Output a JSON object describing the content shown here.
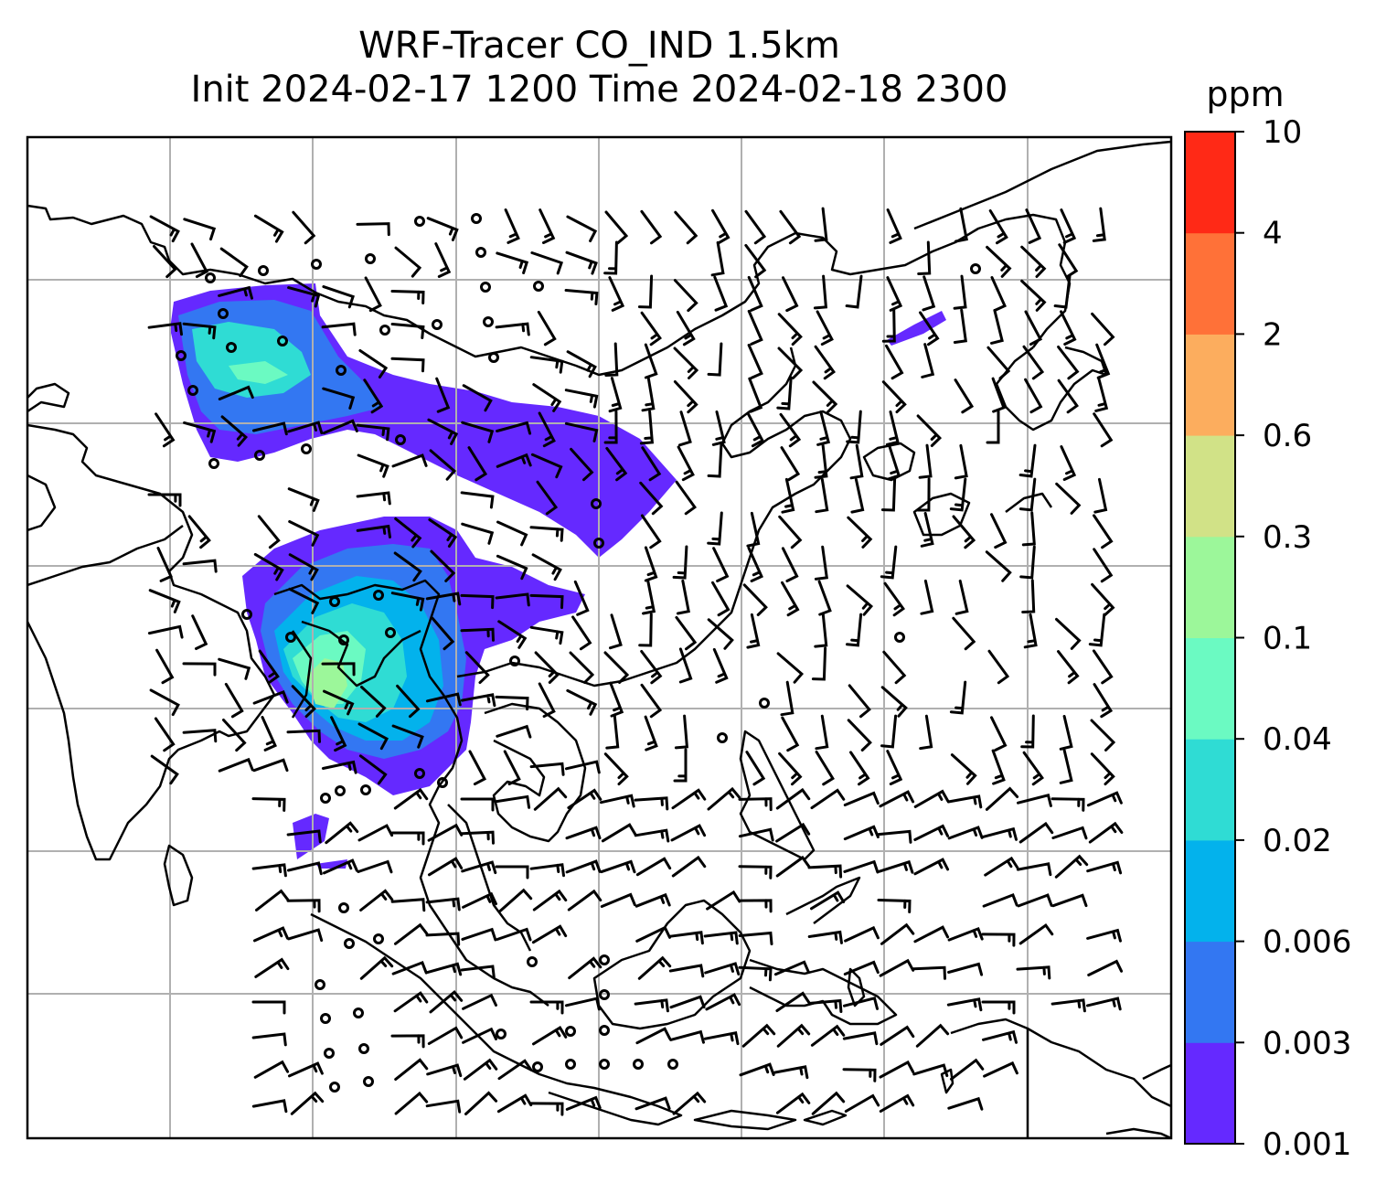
{
  "title": {
    "line1": "WRF-Tracer CO_IND 1.5km",
    "line2": "Init 2024-02-17 1200 Time 2024-02-18 2300"
  },
  "colorbar": {
    "unit": "ppm",
    "levels": [
      "0.001",
      "0.003",
      "0.006",
      "0.02",
      "0.04",
      "0.1",
      "0.3",
      "0.6",
      "2",
      "4",
      "10"
    ],
    "colors": [
      "#6529ff",
      "#3377f2",
      "#03b2ec",
      "#2fdcd4",
      "#6bfac2",
      "#9cf79a",
      "#d1e287",
      "#fcad5e",
      "#ff7138",
      "#ff2916"
    ]
  },
  "map": {
    "gridlines": true,
    "tracer": "CO_IND",
    "background": "#ffffff",
    "coastline_color": "#000000",
    "grid_color": "#b0b0b0"
  }
}
